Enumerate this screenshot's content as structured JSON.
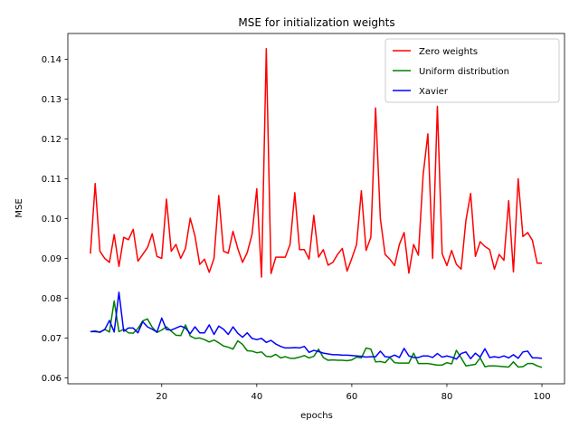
{
  "chart_data": {
    "type": "line",
    "title": "MSE for initialization weights",
    "xlabel": "epochs",
    "ylabel": "MSE",
    "xlim": [
      0.25,
      104.75
    ],
    "ylim": [
      0.0585,
      0.1465
    ],
    "xticks": [
      20,
      40,
      60,
      80,
      100
    ],
    "yticks": [
      0.06,
      0.07,
      0.08,
      0.09,
      0.1,
      0.11,
      0.12,
      0.13,
      0.14
    ],
    "ytick_labels": [
      "0.06",
      "0.07",
      "0.08",
      "0.09",
      "0.10",
      "0.11",
      "0.12",
      "0.13",
      "0.14"
    ],
    "grid": false,
    "legend_position": "top-right",
    "x": [
      5,
      6,
      7,
      8,
      9,
      10,
      11,
      12,
      13,
      14,
      15,
      16,
      17,
      18,
      19,
      20,
      21,
      22,
      23,
      24,
      25,
      26,
      27,
      28,
      29,
      30,
      31,
      32,
      33,
      34,
      35,
      36,
      37,
      38,
      39,
      40,
      41,
      42,
      43,
      44,
      45,
      46,
      47,
      48,
      49,
      50,
      51,
      52,
      53,
      54,
      55,
      56,
      57,
      58,
      59,
      60,
      61,
      62,
      63,
      64,
      65,
      66,
      67,
      68,
      69,
      70,
      71,
      72,
      73,
      74,
      75,
      76,
      77,
      78,
      79,
      80,
      81,
      82,
      83,
      84,
      85,
      86,
      87,
      88,
      89,
      90,
      91,
      92,
      93,
      94,
      95,
      96,
      97,
      98,
      99,
      100
    ],
    "series": [
      {
        "name": "Zero weights",
        "color": "#ff0000",
        "values": [
          0.0912,
          0.1088,
          0.0918,
          0.09,
          0.089,
          0.096,
          0.088,
          0.0953,
          0.0947,
          0.0973,
          0.0893,
          0.091,
          0.0927,
          0.0962,
          0.0905,
          0.09,
          0.1049,
          0.0918,
          0.0935,
          0.09,
          0.0925,
          0.1001,
          0.0956,
          0.0885,
          0.0898,
          0.0865,
          0.09,
          0.1058,
          0.0918,
          0.0913,
          0.0968,
          0.0925,
          0.089,
          0.0915,
          0.096,
          0.1075,
          0.0853,
          0.1427,
          0.0862,
          0.0903,
          0.0903,
          0.0903,
          0.0935,
          0.1065,
          0.0922,
          0.0922,
          0.0898,
          0.1008,
          0.0903,
          0.0922,
          0.0883,
          0.089,
          0.091,
          0.0925,
          0.0868,
          0.09,
          0.0935,
          0.107,
          0.092,
          0.0953,
          0.1278,
          0.1,
          0.091,
          0.0898,
          0.0882,
          0.0935,
          0.0965,
          0.0863,
          0.0935,
          0.0908,
          0.111,
          0.1213,
          0.09,
          0.1282,
          0.0912,
          0.0882,
          0.092,
          0.0885,
          0.0873,
          0.0995,
          0.1063,
          0.0905,
          0.0942,
          0.093,
          0.0922,
          0.0873,
          0.091,
          0.0895,
          0.1045,
          0.0866,
          0.11,
          0.0955,
          0.0965,
          0.0945,
          0.0888,
          0.0888
        ]
      },
      {
        "name": "Uniform distribution",
        "color": "#008000",
        "values": [
          0.0716,
          0.0718,
          0.0714,
          0.0722,
          0.0715,
          0.0793,
          0.0716,
          0.0722,
          0.0713,
          0.0712,
          0.0724,
          0.0743,
          0.0748,
          0.0727,
          0.0714,
          0.072,
          0.0728,
          0.0717,
          0.0707,
          0.0706,
          0.0733,
          0.0705,
          0.0699,
          0.07,
          0.0696,
          0.069,
          0.0695,
          0.0688,
          0.068,
          0.0677,
          0.0672,
          0.0693,
          0.0684,
          0.0668,
          0.0667,
          0.0663,
          0.0665,
          0.0654,
          0.0653,
          0.0659,
          0.065,
          0.0653,
          0.0649,
          0.0649,
          0.0652,
          0.0656,
          0.065,
          0.0654,
          0.0672,
          0.0651,
          0.0644,
          0.0645,
          0.0644,
          0.0644,
          0.0643,
          0.0645,
          0.0652,
          0.065,
          0.0675,
          0.0672,
          0.064,
          0.0641,
          0.0638,
          0.0651,
          0.0638,
          0.0637,
          0.0637,
          0.0637,
          0.0662,
          0.0636,
          0.0636,
          0.0636,
          0.0634,
          0.0632,
          0.0632,
          0.0638,
          0.0635,
          0.0669,
          0.065,
          0.063,
          0.0632,
          0.0634,
          0.065,
          0.0628,
          0.063,
          0.063,
          0.0629,
          0.0628,
          0.0627,
          0.064,
          0.0627,
          0.0628,
          0.0636,
          0.0636,
          0.063,
          0.0626
        ]
      },
      {
        "name": "Xavier",
        "color": "#0000ff",
        "values": [
          0.0716,
          0.0716,
          0.0715,
          0.0721,
          0.0744,
          0.0715,
          0.0815,
          0.0717,
          0.0725,
          0.0725,
          0.0713,
          0.0741,
          0.0728,
          0.0722,
          0.0715,
          0.075,
          0.0721,
          0.072,
          0.0725,
          0.073,
          0.0725,
          0.0711,
          0.0728,
          0.0713,
          0.0713,
          0.0733,
          0.0709,
          0.073,
          0.0722,
          0.0709,
          0.0728,
          0.0712,
          0.0702,
          0.0713,
          0.0699,
          0.0696,
          0.0699,
          0.0689,
          0.0694,
          0.0685,
          0.0679,
          0.0675,
          0.0675,
          0.0676,
          0.0675,
          0.0679,
          0.0664,
          0.0669,
          0.0666,
          0.0662,
          0.066,
          0.0658,
          0.0658,
          0.0657,
          0.0657,
          0.0656,
          0.0655,
          0.0654,
          0.0652,
          0.0653,
          0.0653,
          0.0667,
          0.0653,
          0.0652,
          0.0657,
          0.0651,
          0.0674,
          0.0655,
          0.0651,
          0.0651,
          0.0655,
          0.0655,
          0.0651,
          0.0661,
          0.0652,
          0.0655,
          0.0652,
          0.0647,
          0.0661,
          0.0665,
          0.0648,
          0.0662,
          0.0652,
          0.0673,
          0.0651,
          0.0653,
          0.0651,
          0.0655,
          0.065,
          0.0658,
          0.0649,
          0.0665,
          0.0667,
          0.065,
          0.065,
          0.0649
        ]
      }
    ]
  }
}
